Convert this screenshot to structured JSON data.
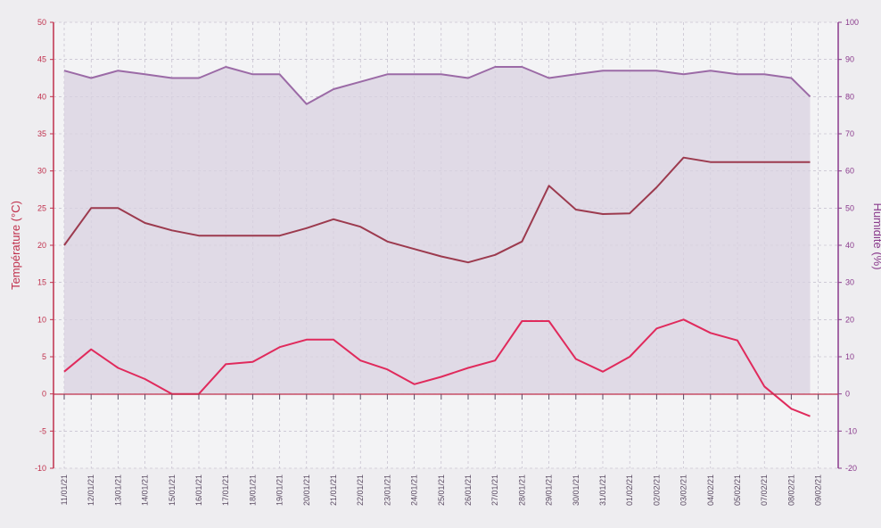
{
  "chart_data": {
    "type": "line",
    "ylabel": "Température (°C)",
    "y2label": "Humidité (%)",
    "ylim": [
      -10,
      50
    ],
    "y2lim": [
      -20,
      100
    ],
    "yticks": [
      "50",
      "45",
      "40",
      "35",
      "30",
      "25",
      "20",
      "15",
      "10",
      "5",
      "0",
      "-5",
      "-10"
    ],
    "y2ticks": [
      "100",
      "90",
      "80",
      "70",
      "60",
      "50",
      "40",
      "30",
      "20",
      "10",
      "0",
      "-10",
      "-20"
    ],
    "x": [
      "11/01/21",
      "12/01/21",
      "13/01/21",
      "14/01/21",
      "15/01/21",
      "16/01/21",
      "17/01/21",
      "18/01/21",
      "19/01/21",
      "20/01/21",
      "21/01/21",
      "22/01/21",
      "23/01/21",
      "24/01/21",
      "25/01/21",
      "26/01/21",
      "27/01/21",
      "28/01/21",
      "29/01/21",
      "30/01/21",
      "31/01/21",
      "01/02/21",
      "02/02/21",
      "03/02/21",
      "04/02/21",
      "05/02/21",
      "07/02/21",
      "08/02/21",
      "09/02/21"
    ],
    "series": [
      {
        "axis": "y2",
        "color": "#9b6aa6",
        "fill": "#d9d1e0",
        "points": [
          [
            0,
            87
          ],
          [
            0.5,
            86
          ],
          [
            1,
            85
          ],
          [
            2,
            87
          ],
          [
            3,
            86
          ],
          [
            4,
            85
          ],
          [
            5,
            85
          ],
          [
            6,
            88
          ],
          [
            7,
            86
          ],
          [
            8,
            86
          ],
          [
            9,
            78
          ],
          [
            10,
            82
          ],
          [
            11,
            84
          ],
          [
            12,
            86
          ],
          [
            13,
            86
          ],
          [
            14,
            86
          ],
          [
            15,
            85
          ],
          [
            16,
            88
          ],
          [
            17,
            88
          ],
          [
            18,
            85
          ],
          [
            19,
            86
          ],
          [
            20,
            87
          ],
          [
            21,
            87
          ],
          [
            22,
            87
          ],
          [
            23,
            86
          ],
          [
            24,
            87
          ],
          [
            25,
            86
          ],
          [
            26,
            86
          ],
          [
            27,
            85
          ],
          [
            27.7,
            80
          ]
        ]
      },
      {
        "axis": "y",
        "color": "#9c3a4e",
        "points": [
          [
            0,
            20
          ],
          [
            1,
            25
          ],
          [
            2,
            25
          ],
          [
            3,
            23
          ],
          [
            4,
            22
          ],
          [
            5,
            21.3
          ],
          [
            6,
            21.3
          ],
          [
            7,
            21.3
          ],
          [
            8,
            21.3
          ],
          [
            9,
            22.3
          ],
          [
            10,
            23.5
          ],
          [
            11,
            22.5
          ],
          [
            12,
            20.5
          ],
          [
            13,
            19.5
          ],
          [
            14,
            18.5
          ],
          [
            15,
            17.7
          ],
          [
            16,
            18.7
          ],
          [
            17,
            20.5
          ],
          [
            18,
            28
          ],
          [
            19,
            24.8
          ],
          [
            20,
            24.2
          ],
          [
            21,
            24.3
          ],
          [
            22,
            27.8
          ],
          [
            23,
            31.8
          ],
          [
            24,
            31.2
          ],
          [
            25,
            31.2
          ],
          [
            26,
            31.2
          ],
          [
            27,
            31.2
          ],
          [
            27.7,
            31.2
          ]
        ]
      },
      {
        "axis": "y",
        "color": "#e02a5c",
        "points": [
          [
            0,
            3
          ],
          [
            1,
            6
          ],
          [
            2,
            3.5
          ],
          [
            3,
            2
          ],
          [
            4,
            0
          ],
          [
            5,
            0
          ],
          [
            6,
            4
          ],
          [
            7,
            4.3
          ],
          [
            8,
            6.3
          ],
          [
            9,
            7.3
          ],
          [
            10,
            7.3
          ],
          [
            11,
            4.5
          ],
          [
            12,
            3.3
          ],
          [
            13,
            1.3
          ],
          [
            14,
            2.3
          ],
          [
            15,
            3.5
          ],
          [
            16,
            4.5
          ],
          [
            17,
            9.8
          ],
          [
            18,
            9.8
          ],
          [
            19,
            4.7
          ],
          [
            20,
            3
          ],
          [
            21,
            5
          ],
          [
            22,
            8.8
          ],
          [
            23,
            10
          ],
          [
            24,
            8.2
          ],
          [
            25,
            7.2
          ],
          [
            26,
            1
          ],
          [
            27,
            -2
          ],
          [
            27.7,
            -3
          ]
        ]
      }
    ]
  }
}
